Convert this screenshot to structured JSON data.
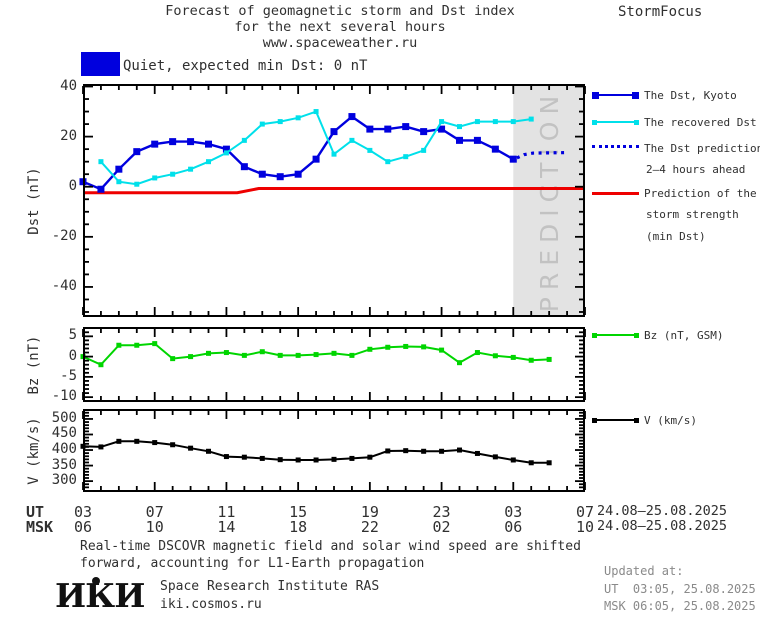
{
  "header": {
    "title1": "Forecast of geomagnetic storm and Dst index",
    "title2": "for the next several hours",
    "title3": "www.spaceweather.ru",
    "brand": "StormFocus"
  },
  "status": {
    "label": "Quiet, expected min Dst: 0 nT",
    "box_color": "#0000DE"
  },
  "colors": {
    "dst_blue": "#0000DE",
    "recovered_cyan": "#00E0EA",
    "bz_green": "#00D500",
    "v_black": "#000000",
    "strength_red": "#EE0000",
    "prediction_band": "#E3E3E3",
    "prediction_text": "#C2C2C2"
  },
  "legend": {
    "kyoto": "The Dst, Kyoto",
    "recovered": "The recovered Dst",
    "prediction_line1": "The Dst prediction",
    "prediction_line2": "2–4 hours ahead",
    "strength_line1": "Prediction of the",
    "strength_line2": "storm strength",
    "strength_line3": "(min Dst)",
    "bz": "Bz (nT, GSM)",
    "v": "V (km/s)"
  },
  "prediction_band": {
    "text": "PREDICTION"
  },
  "axes": {
    "dst_label": "Dst (nT)",
    "bz_label": "Bz (nT)",
    "v_label": "V (km/s)",
    "ut_label": "UT",
    "msk_label": "MSK",
    "ut_hours": [
      "03",
      "07",
      "11",
      "15",
      "19",
      "23",
      "03",
      "07"
    ],
    "msk_hours": [
      "06",
      "10",
      "14",
      "18",
      "22",
      "02",
      "06",
      "10"
    ],
    "date_range": "24.08–25.08.2025"
  },
  "footer": {
    "line1": "Real-time DSCOVR magnetic field and solar wind speed are shifted",
    "line2": "forward, accounting for L1-Earth propagation",
    "institute": "Space Research Institute RAS",
    "site": "iki.cosmos.ru",
    "logo_text": "ИКИ",
    "updated_label": "Updated at:",
    "updated_ut": "UT  03:05, 25.08.2025",
    "updated_msk": "MSK 06:05, 25.08.2025"
  },
  "chart_data": [
    {
      "type": "line",
      "panel": "dst",
      "ylabel": "Dst (nT)",
      "ylim": [
        -52,
        41
      ],
      "yticks": [
        40,
        20,
        0,
        -20,
        -40
      ],
      "ytick_labels": [
        "40",
        "20",
        "0",
        "-20",
        "-40"
      ],
      "y_minor_step": 5,
      "y_major_mod": 20,
      "x_hours_range": [
        0,
        28
      ],
      "x_major_every": 4,
      "x_start_label_ut": "03:00 UT 24.08.2025",
      "prediction_band_hours": [
        24,
        28
      ],
      "series": [
        {
          "name": "Prediction of the storm strength (min Dst)",
          "color": "#EE0000",
          "line_width": 3,
          "marker": null,
          "points": [
            [
              0,
              -2.4
            ],
            [
              8.6,
              -2.4
            ],
            [
              9.8,
              -0.7
            ],
            [
              28,
              -0.7
            ]
          ]
        },
        {
          "name": "The Dst, Kyoto",
          "color": "#0000DE",
          "line_width": 2.4,
          "marker": "square",
          "marker_size": 7,
          "points": [
            [
              0,
              2
            ],
            [
              1,
              -1
            ],
            [
              2,
              7
            ],
            [
              3,
              14
            ],
            [
              4,
              17
            ],
            [
              5,
              18
            ],
            [
              6,
              18
            ],
            [
              7,
              17
            ],
            [
              8,
              15
            ],
            [
              9,
              8
            ],
            [
              10,
              5
            ],
            [
              11,
              4
            ],
            [
              12,
              5
            ],
            [
              13,
              11
            ],
            [
              14,
              22
            ],
            [
              15,
              28
            ],
            [
              16,
              23
            ],
            [
              17,
              23
            ],
            [
              18,
              24
            ],
            [
              19,
              22
            ],
            [
              20,
              23
            ],
            [
              21,
              18.5
            ],
            [
              22,
              18.5
            ],
            [
              23,
              15
            ],
            [
              24,
              11
            ]
          ]
        },
        {
          "name": "The recovered Dst",
          "color": "#00E0EA",
          "line_width": 2,
          "marker": "square",
          "marker_size": 5,
          "points": [
            [
              1,
              10
            ],
            [
              2,
              2
            ],
            [
              3,
              1
            ],
            [
              4,
              3.5
            ],
            [
              5,
              5
            ],
            [
              6,
              7
            ],
            [
              7,
              10
            ],
            [
              8,
              13.5
            ],
            [
              9,
              18.5
            ],
            [
              10,
              25
            ],
            [
              11,
              26
            ],
            [
              12,
              27.5
            ],
            [
              13,
              30
            ],
            [
              14,
              13
            ],
            [
              15,
              18.5
            ],
            [
              16,
              14.5
            ],
            [
              17,
              10
            ],
            [
              18,
              12
            ],
            [
              19,
              14.5
            ],
            [
              20,
              26
            ],
            [
              21,
              24
            ],
            [
              22,
              26
            ],
            [
              23,
              26
            ],
            [
              24,
              26
            ],
            [
              25,
              27
            ]
          ]
        },
        {
          "name": "The Dst prediction 2–4 hours ahead",
          "color": "#0000DE",
          "line_width": 3.2,
          "dash": "3 4.5",
          "marker": null,
          "points": [
            [
              24.2,
              11.5
            ],
            [
              24.6,
              12.8
            ],
            [
              25.1,
              13.4
            ],
            [
              26.9,
              13.6
            ]
          ]
        }
      ]
    },
    {
      "type": "line",
      "panel": "bz",
      "ylabel": "Bz (nT)",
      "ylim": [
        -11.2,
        7.3
      ],
      "yticks": [
        5,
        0,
        -5,
        -10
      ],
      "ytick_labels": [
        "5",
        "0",
        "-5",
        "-10"
      ],
      "y_minor_step": 1,
      "y_major_mod": 5,
      "x_hours_range": [
        0,
        28
      ],
      "x_major_every": 4,
      "series": [
        {
          "name": "Bz (nT, GSM)",
          "color": "#00D500",
          "line_width": 2,
          "marker": "square",
          "marker_size": 5,
          "points": [
            [
              0,
              0
            ],
            [
              1,
              -2
            ],
            [
              2,
              2.8
            ],
            [
              3,
              2.8
            ],
            [
              4,
              3.2
            ],
            [
              5,
              -0.5
            ],
            [
              6,
              0
            ],
            [
              7,
              0.8
            ],
            [
              8,
              1
            ],
            [
              9,
              0.3
            ],
            [
              10,
              1.2
            ],
            [
              11,
              0.3
            ],
            [
              12,
              0.3
            ],
            [
              13,
              0.5
            ],
            [
              14,
              0.8
            ],
            [
              15,
              0.3
            ],
            [
              16,
              1.8
            ],
            [
              17,
              2.3
            ],
            [
              18,
              2.5
            ],
            [
              19,
              2.4
            ],
            [
              20,
              1.6
            ],
            [
              21,
              -1.5
            ],
            [
              22,
              1
            ],
            [
              23,
              0.2
            ],
            [
              24,
              -0.2
            ],
            [
              25,
              -0.9
            ],
            [
              26,
              -0.7
            ]
          ]
        }
      ]
    },
    {
      "type": "line",
      "panel": "v",
      "ylabel": "V (km/s)",
      "ylim": [
        265,
        532
      ],
      "yticks": [
        500,
        450,
        400,
        350,
        300
      ],
      "ytick_labels": [
        "500",
        "450",
        "400",
        "350",
        "300"
      ],
      "y_minor_step": 10,
      "y_major_mod": 50,
      "x_hours_range": [
        0,
        28
      ],
      "x_major_every": 4,
      "series": [
        {
          "name": "V (km/s)",
          "color": "#000000",
          "line_width": 2,
          "marker": "square",
          "marker_size": 5,
          "points": [
            [
              0,
              412
            ],
            [
              1,
              410
            ],
            [
              2,
              428
            ],
            [
              3,
              428
            ],
            [
              4,
              424
            ],
            [
              5,
              417
            ],
            [
              6,
              406
            ],
            [
              7,
              396
            ],
            [
              8,
              379
            ],
            [
              9,
              377
            ],
            [
              10,
              373
            ],
            [
              11,
              369
            ],
            [
              12,
              368
            ],
            [
              13,
              368
            ],
            [
              14,
              370
            ],
            [
              15,
              373
            ],
            [
              16,
              377
            ],
            [
              17,
              397
            ],
            [
              18,
              398
            ],
            [
              19,
              396
            ],
            [
              20,
              396
            ],
            [
              21,
              400
            ],
            [
              22,
              389
            ],
            [
              23,
              378
            ],
            [
              24,
              368
            ],
            [
              25,
              359
            ],
            [
              26,
              359
            ]
          ]
        }
      ]
    }
  ]
}
